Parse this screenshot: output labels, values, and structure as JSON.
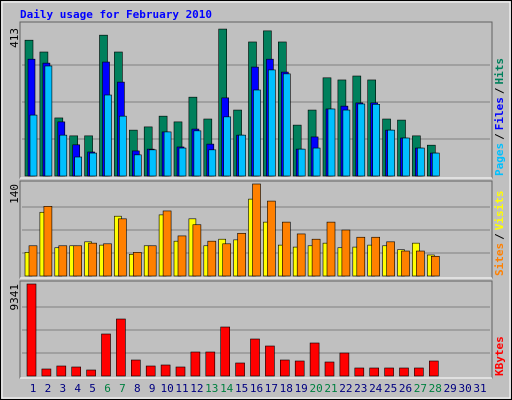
{
  "chart_data": [
    {
      "type": "bar",
      "title": "Daily usage for February 2010",
      "ylim": [
        0,
        413
      ],
      "yticks": [
        413
      ],
      "legend_separator": "/",
      "series": [
        {
          "name": "Hits",
          "color": "#00805c",
          "values": [
            379,
            346,
            162,
            112,
            112,
            393,
            346,
            128,
            137,
            167,
            151,
            220,
            159,
            410,
            184,
            374,
            405,
            374,
            142,
            184,
            274,
            268,
            279,
            268,
            159,
            156,
            112,
            86,
            null,
            null,
            null
          ]
        },
        {
          "name": "Files",
          "color": "#0000ff",
          "values": [
            326,
            315,
            151,
            87,
            67,
            318,
            262,
            70,
            75,
            123,
            81,
            131,
            89,
            218,
            114,
            304,
            326,
            290,
            75,
            109,
            187,
            195,
            204,
            204,
            128,
            106,
            78,
            64,
            null,
            null,
            null
          ]
        },
        {
          "name": "Pages",
          "color": "#00c0ff",
          "values": [
            170,
            307,
            114,
            53,
            64,
            226,
            167,
            59,
            73,
            123,
            78,
            126,
            73,
            165,
            114,
            240,
            296,
            285,
            75,
            78,
            187,
            184,
            201,
            200,
            128,
            106,
            78,
            64,
            null,
            null,
            null
          ]
        }
      ]
    },
    {
      "type": "bar",
      "ylim": [
        0,
        140
      ],
      "yticks": [
        140
      ],
      "legend_separator": "/",
      "series": [
        {
          "name": "Visits",
          "color": "#ffff00",
          "values": [
            36,
            97,
            43,
            46,
            52,
            47,
            91,
            33,
            46,
            93,
            53,
            87,
            46,
            56,
            55,
            117,
            82,
            47,
            44,
            46,
            50,
            43,
            44,
            47,
            46,
            40,
            50,
            32,
            null,
            null,
            null
          ]
        },
        {
          "name": "Sites",
          "color": "#ff8000",
          "values": [
            46,
            106,
            46,
            46,
            50,
            49,
            87,
            36,
            46,
            99,
            61,
            78,
            53,
            49,
            65,
            140,
            114,
            82,
            64,
            56,
            82,
            70,
            59,
            59,
            52,
            38,
            38,
            30,
            null,
            null,
            null
          ]
        }
      ]
    },
    {
      "type": "bar",
      "ylim": [
        0,
        9341
      ],
      "yticks": [
        9341
      ],
      "categories": [
        "1",
        "2",
        "3",
        "4",
        "5",
        "6",
        "7",
        "8",
        "9",
        "10",
        "11",
        "12",
        "13",
        "14",
        "15",
        "16",
        "17",
        "18",
        "19",
        "20",
        "21",
        "22",
        "23",
        "24",
        "25",
        "26",
        "27",
        "28",
        "29",
        "30",
        "31"
      ],
      "category_colors": [
        "#000080",
        "#000080",
        "#000080",
        "#000080",
        "#000080",
        "#008040",
        "#008040",
        "#000080",
        "#000080",
        "#000080",
        "#000080",
        "#000080",
        "#008040",
        "#008040",
        "#000080",
        "#000080",
        "#000080",
        "#000080",
        "#000080",
        "#008040",
        "#008040",
        "#000080",
        "#000080",
        "#000080",
        "#000080",
        "#000080",
        "#008040",
        "#008040",
        "#000080",
        "#000080",
        "#000080"
      ],
      "series": [
        {
          "name": "KBytes",
          "color": "#ff0000",
          "values": [
            9341,
            711,
            1015,
            914,
            609,
            4264,
            5786,
            1624,
            1015,
            1117,
            914,
            2436,
            2436,
            4974,
            1320,
            3756,
            3045,
            1624,
            1523,
            3350,
            1421,
            2335,
            812,
            812,
            812,
            812,
            812,
            1523,
            null,
            null,
            null
          ]
        }
      ]
    }
  ]
}
